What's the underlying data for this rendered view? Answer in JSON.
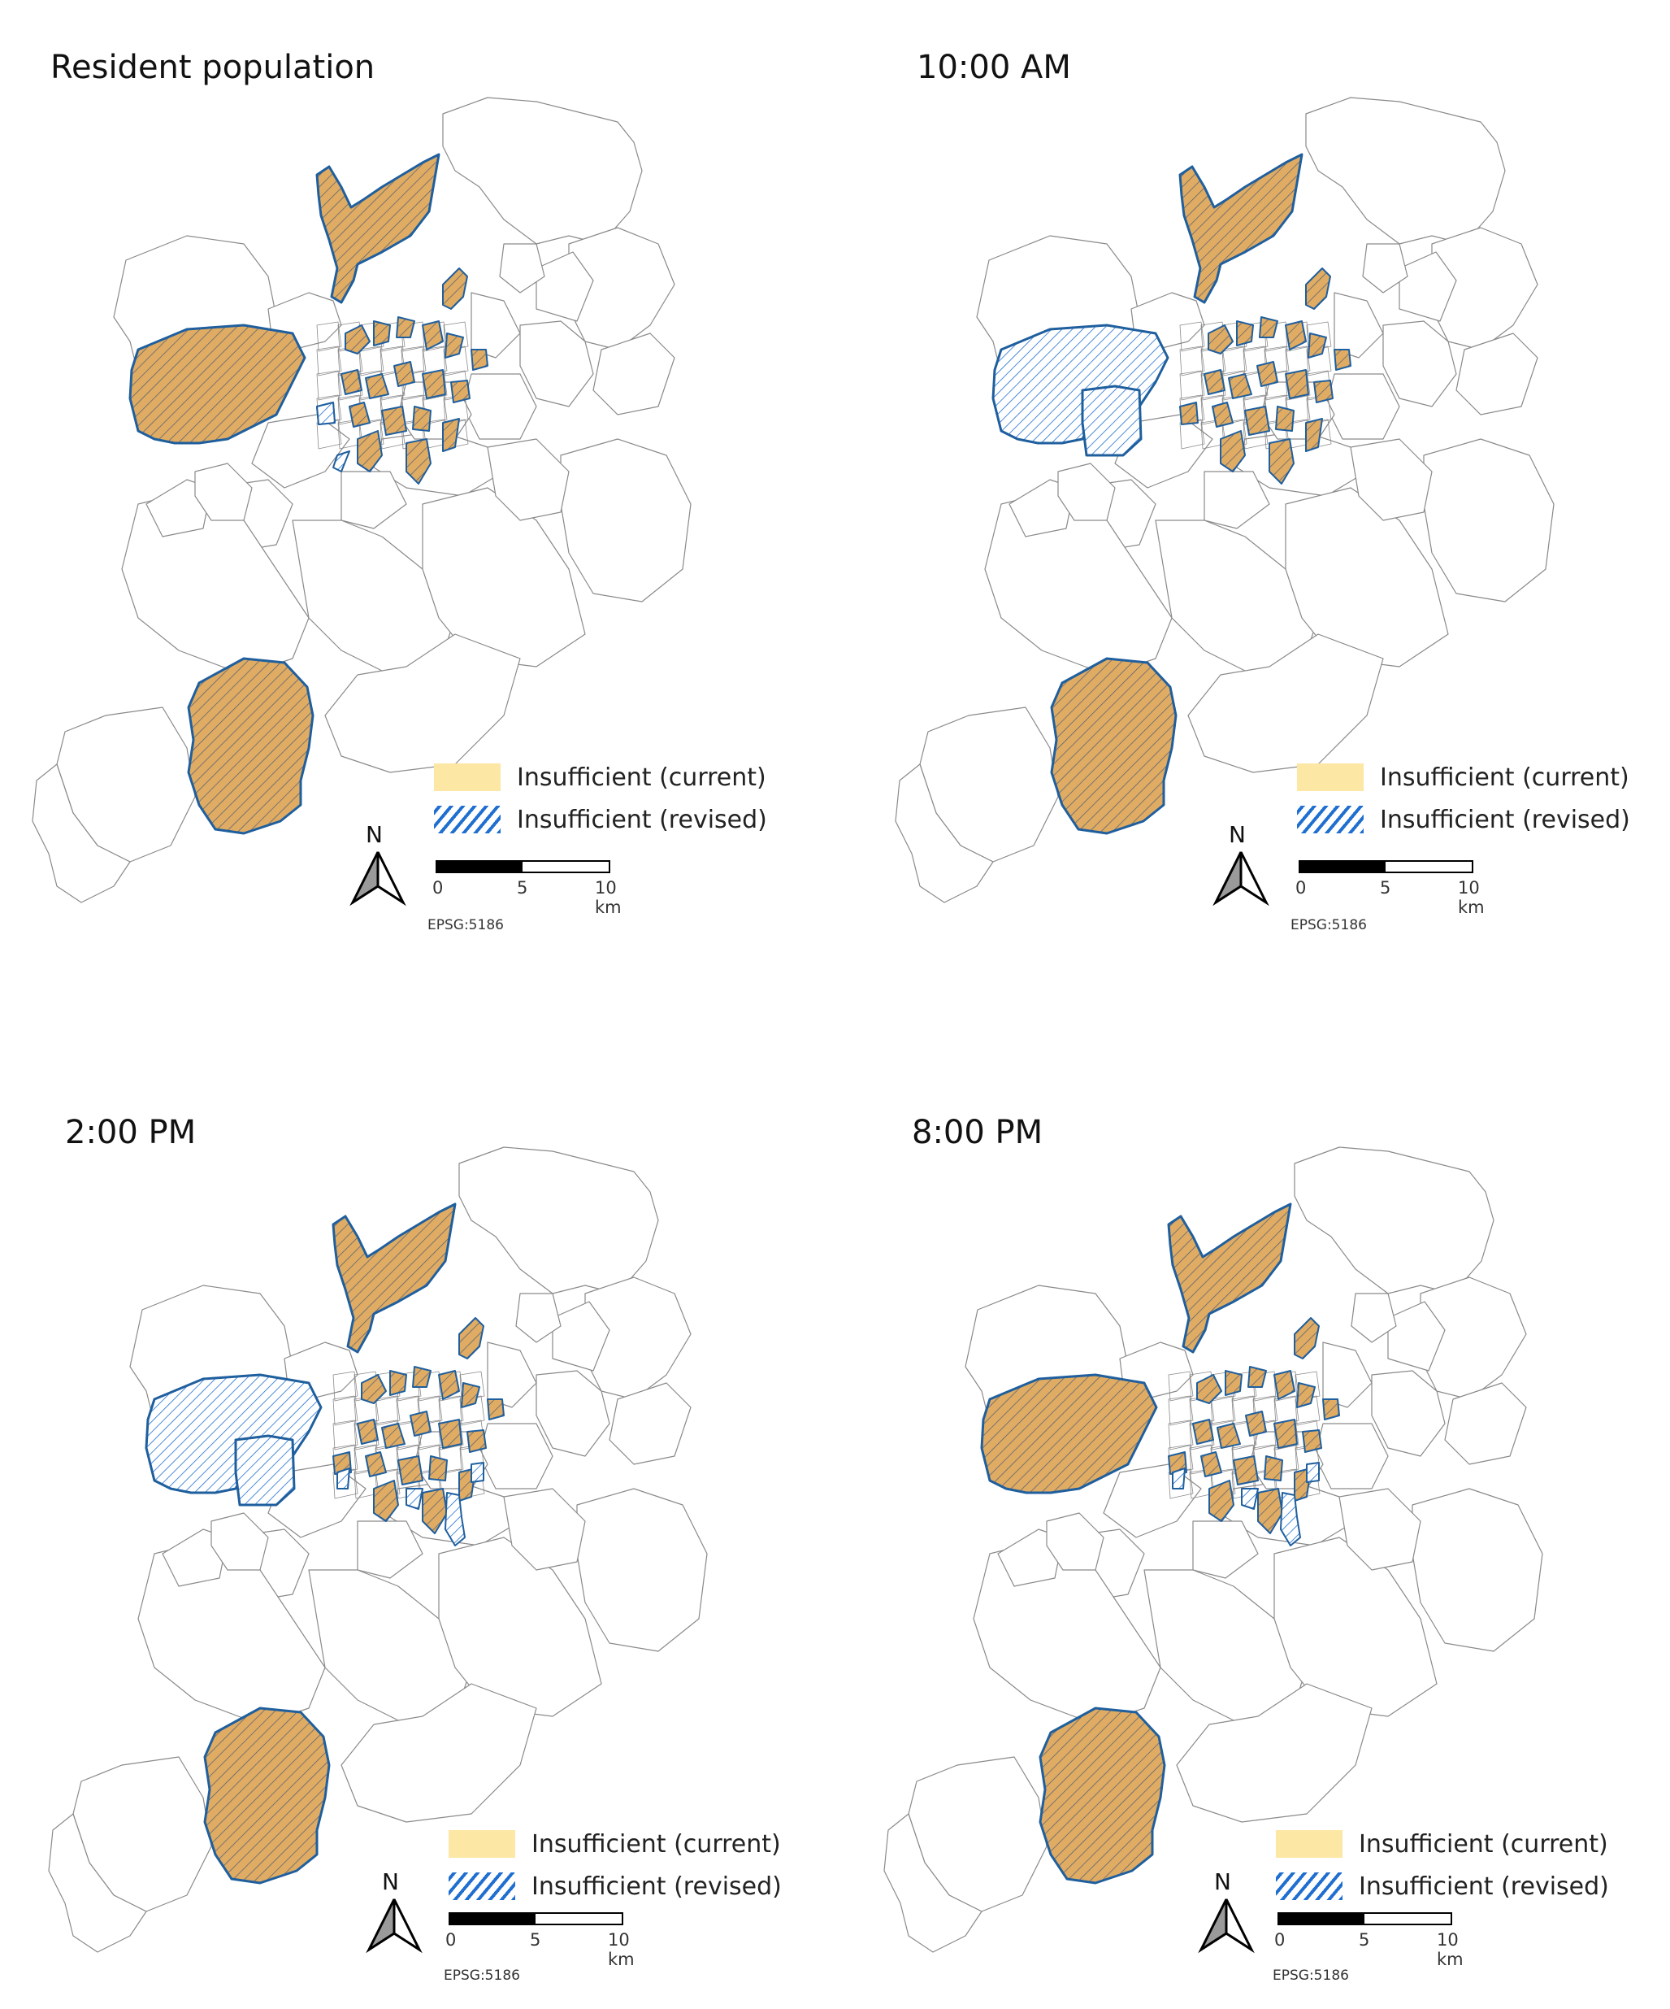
{
  "legend": {
    "current_label": "Insufficient (current)",
    "revised_label": "Insufficient (revised)"
  },
  "scale": {
    "tick0": "0",
    "tick5": "5",
    "tick10": "10 km"
  },
  "north_label": "N",
  "crs_label": "EPSG:5186",
  "colors": {
    "current_fill": "#e0ab62",
    "current_legend": "#fde7a4",
    "revised_hatch": "#1f6fd1",
    "district_border": "#8a8a8a",
    "region_border": "#1f5f9e"
  },
  "panels": [
    {
      "title": "Resident population",
      "west_region": "current",
      "west_south_region": "none",
      "revised_central": "few"
    },
    {
      "title": "10:00 AM",
      "west_region": "revised",
      "west_south_region": "revised",
      "revised_central": "none"
    },
    {
      "title": "2:00 PM",
      "west_region": "revised",
      "west_south_region": "revised",
      "revised_central": "several"
    },
    {
      "title": "8:00 PM",
      "west_region": "current",
      "west_south_region": "none",
      "revised_central": "several"
    }
  ]
}
